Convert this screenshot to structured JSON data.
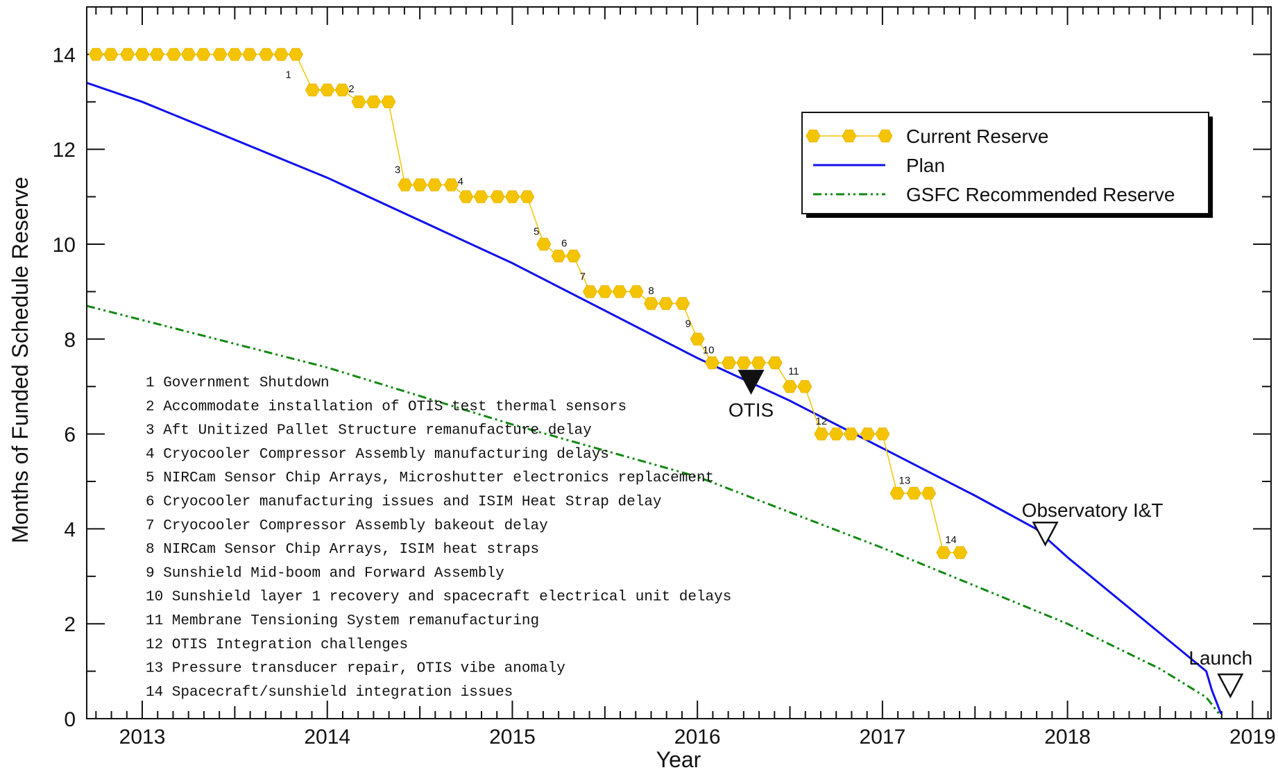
{
  "chart_data": {
    "type": "line",
    "xlabel": "Year",
    "ylabel": "Months of Funded Schedule Reserve",
    "xlim": [
      2012.7,
      2019.1
    ],
    "ylim": [
      0,
      15
    ],
    "x_ticks": [
      2013,
      2014,
      2015,
      2016,
      2017,
      2018,
      2019
    ],
    "y_ticks": [
      0,
      2,
      4,
      6,
      8,
      10,
      12,
      14
    ],
    "grid": false,
    "legend_position": "top-right",
    "series": [
      {
        "name": "Current Reserve",
        "color": "#f5c400",
        "style": "line-markers",
        "points": [
          [
            2012.75,
            14
          ],
          [
            2012.83,
            14
          ],
          [
            2012.92,
            14
          ],
          [
            2013.0,
            14
          ],
          [
            2013.08,
            14
          ],
          [
            2013.17,
            14
          ],
          [
            2013.25,
            14
          ],
          [
            2013.33,
            14
          ],
          [
            2013.42,
            14
          ],
          [
            2013.5,
            14
          ],
          [
            2013.58,
            14
          ],
          [
            2013.67,
            14
          ],
          [
            2013.75,
            14
          ],
          [
            2013.83,
            14
          ],
          [
            2013.92,
            13.25
          ],
          [
            2014.0,
            13.25
          ],
          [
            2014.08,
            13.25
          ],
          [
            2014.17,
            13
          ],
          [
            2014.25,
            13
          ],
          [
            2014.33,
            13
          ],
          [
            2014.42,
            11.25
          ],
          [
            2014.5,
            11.25
          ],
          [
            2014.58,
            11.25
          ],
          [
            2014.67,
            11.25
          ],
          [
            2014.75,
            11
          ],
          [
            2014.83,
            11
          ],
          [
            2014.92,
            11
          ],
          [
            2015.0,
            11
          ],
          [
            2015.08,
            11
          ],
          [
            2015.17,
            10
          ],
          [
            2015.25,
            9.75
          ],
          [
            2015.33,
            9.75
          ],
          [
            2015.42,
            9
          ],
          [
            2015.5,
            9
          ],
          [
            2015.58,
            9
          ],
          [
            2015.67,
            9
          ],
          [
            2015.75,
            8.75
          ],
          [
            2015.83,
            8.75
          ],
          [
            2015.92,
            8.75
          ],
          [
            2016.0,
            8
          ],
          [
            2016.08,
            7.5
          ],
          [
            2016.17,
            7.5
          ],
          [
            2016.25,
            7.5
          ],
          [
            2016.33,
            7.5
          ],
          [
            2016.42,
            7.5
          ],
          [
            2016.5,
            7
          ],
          [
            2016.58,
            7
          ],
          [
            2016.67,
            6
          ],
          [
            2016.75,
            6
          ],
          [
            2016.83,
            6
          ],
          [
            2016.92,
            6
          ],
          [
            2017.0,
            6
          ],
          [
            2017.08,
            4.75
          ],
          [
            2017.17,
            4.75
          ],
          [
            2017.25,
            4.75
          ],
          [
            2017.33,
            3.5
          ],
          [
            2017.42,
            3.5
          ]
        ]
      },
      {
        "name": "Plan",
        "color": "#1010ee",
        "style": "solid",
        "points": [
          [
            2012.7,
            13.4
          ],
          [
            2013.0,
            13.0
          ],
          [
            2014.0,
            11.4
          ],
          [
            2015.0,
            9.6
          ],
          [
            2016.0,
            7.6
          ],
          [
            2016.5,
            6.7
          ],
          [
            2017.0,
            5.7
          ],
          [
            2017.5,
            4.7
          ],
          [
            2017.83,
            4.0
          ],
          [
            2018.0,
            3.4
          ],
          [
            2018.5,
            1.8
          ],
          [
            2018.75,
            1.0
          ],
          [
            2018.78,
            0.6
          ],
          [
            2018.83,
            0.1
          ]
        ]
      },
      {
        "name": "GSFC Recommended Reserve",
        "color": "#118811",
        "style": "dash-dot-dot",
        "points": [
          [
            2012.7,
            8.7
          ],
          [
            2013.0,
            8.4
          ],
          [
            2014.0,
            7.4
          ],
          [
            2015.0,
            6.2
          ],
          [
            2016.0,
            5.1
          ],
          [
            2017.0,
            3.6
          ],
          [
            2018.0,
            2.0
          ],
          [
            2018.5,
            1.05
          ],
          [
            2018.75,
            0.45
          ],
          [
            2018.83,
            0.05
          ]
        ]
      }
    ],
    "step_labels": [
      {
        "n": "1",
        "x": 13.79,
        "y": 13.5
      },
      {
        "n": "2",
        "x": 14.13,
        "y": 13.2
      },
      {
        "n": "3",
        "x": 14.38,
        "y": 11.5
      },
      {
        "n": "4",
        "x": 14.72,
        "y": 11.25
      },
      {
        "n": "5",
        "x": 15.13,
        "y": 10.2
      },
      {
        "n": "6",
        "x": 15.28,
        "y": 9.95
      },
      {
        "n": "7",
        "x": 15.38,
        "y": 9.25
      },
      {
        "n": "8",
        "x": 15.75,
        "y": 8.95
      },
      {
        "n": "9",
        "x": 15.95,
        "y": 8.25
      },
      {
        "n": "10",
        "x": 16.06,
        "y": 7.7
      },
      {
        "n": "11",
        "x": 16.52,
        "y": 7.25
      },
      {
        "n": "12",
        "x": 16.67,
        "y": 6.2
      },
      {
        "n": "13",
        "x": 17.12,
        "y": 4.95
      },
      {
        "n": "14",
        "x": 17.37,
        "y": 3.7
      }
    ],
    "milestones": [
      {
        "label": "OTIS",
        "x": 2016.29,
        "y": 7.1,
        "filled": true
      },
      {
        "label": "Observatory I&T",
        "x": 2017.88,
        "y": 3.9,
        "filled": false
      },
      {
        "label": "Launch",
        "x": 2018.88,
        "y": 0.7,
        "filled": false
      }
    ],
    "notes": [
      "1 Government Shutdown",
      "2 Accommodate installation of OTIS test thermal sensors",
      "3 Aft Unitized Pallet Structure remanufacture delay",
      "4 Cryocooler Compressor Assembly manufacturing delays",
      "5 NIRCam Sensor Chip Arrays, Microshutter electronics replacement",
      "6 Cryocooler manufacturing issues and ISIM Heat Strap delay",
      "7 Cryocooler Compressor Assembly bakeout delay",
      "8 NIRCam Sensor Chip Arrays, ISIM heat straps",
      "9 Sunshield Mid-boom and Forward Assembly",
      "10 Sunshield layer 1 recovery and spacecraft electrical unit delays",
      "11 Membrane Tensioning System remanufacturing",
      "12 OTIS Integration challenges",
      "13 Pressure transducer repair, OTIS vibe anomaly",
      "14 Spacecraft/sunshield integration issues"
    ]
  }
}
